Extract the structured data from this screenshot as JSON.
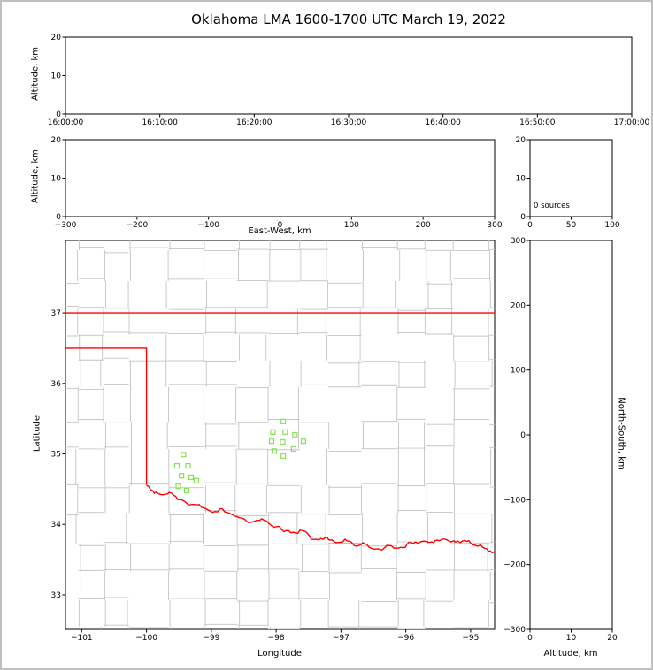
{
  "title": "Oklahoma LMA 1600-1700 UTC March 19, 2022",
  "colors": {
    "state_boundary": "#ff0000",
    "county_lines": "#c4c4c4",
    "station_marker": "#85e254",
    "axis": "#000000",
    "figure_border": "#c0c0c0"
  },
  "chart_data": [
    {
      "id": "time_height_panel",
      "type": "scatter",
      "xlabel": "",
      "ylabel": "Altitude, km",
      "xticks": [
        "16:00:00",
        "16:10:00",
        "16:20:00",
        "16:30:00",
        "16:40:00",
        "16:50:00",
        "17:00:00"
      ],
      "xtick_type": "categorical",
      "yticks": [
        0,
        10,
        20
      ],
      "ylim": [
        0,
        20
      ],
      "points": []
    },
    {
      "id": "ew_height_panel",
      "type": "scatter",
      "xlabel": "East-West, km",
      "ylabel": "Altitude, km",
      "xticks": [
        -300,
        -200,
        -100,
        0,
        100,
        200,
        300
      ],
      "xlim": [
        -300,
        300
      ],
      "yticks": [
        0,
        10,
        20
      ],
      "ylim": [
        0,
        20
      ],
      "points": []
    },
    {
      "id": "source_histogram_panel",
      "type": "line",
      "annotation": "0 sources",
      "xticks": [
        0,
        50,
        100
      ],
      "xlim": [
        0,
        100
      ],
      "yticks": [
        0,
        10,
        20
      ],
      "ylim": [
        0,
        20
      ],
      "points": []
    },
    {
      "id": "plan_view_map",
      "type": "scatter",
      "xlabel": "Longitude",
      "ylabel": "Latitude",
      "xticks": [
        -101,
        -100,
        -99,
        -98,
        -97,
        -96,
        -95
      ],
      "xlim": [
        -101.25,
        -94.63
      ],
      "yticks": [
        33,
        34,
        35,
        36,
        37
      ],
      "ylim": [
        32.51,
        38.03
      ],
      "county_grid": {
        "seed": 7,
        "lon_start": -101.05,
        "lat_start": 32.55,
        "lon_step_min": 0.38,
        "lon_step_var": 0.24,
        "lat_step_min": 0.34,
        "lat_step_var": 0.18,
        "skip_prob": 0.15,
        "offset": 0.08
      },
      "stations": [
        [
          -99.43,
          34.99
        ],
        [
          -99.53,
          34.83
        ],
        [
          -99.36,
          34.83
        ],
        [
          -99.46,
          34.69
        ],
        [
          -99.31,
          34.67
        ],
        [
          -99.51,
          34.54
        ],
        [
          -99.38,
          34.48
        ],
        [
          -99.23,
          34.62
        ],
        [
          -97.89,
          35.46
        ],
        [
          -98.05,
          35.31
        ],
        [
          -97.86,
          35.31
        ],
        [
          -97.71,
          35.27
        ],
        [
          -98.07,
          35.18
        ],
        [
          -97.9,
          35.17
        ],
        [
          -98.03,
          35.04
        ],
        [
          -97.89,
          34.97
        ],
        [
          -97.73,
          35.07
        ],
        [
          -97.58,
          35.18
        ]
      ],
      "state_boundary": {
        "north": [
          [
            -101.25,
            37.0
          ],
          [
            -94.63,
            37.0
          ]
        ],
        "panhandle_border": [
          [
            -101.25,
            36.5
          ],
          [
            -100.0,
            36.5
          ],
          [
            -100.0,
            34.56
          ]
        ],
        "red_river": [
          [
            -100.0,
            34.55
          ],
          [
            -99.88,
            34.44
          ],
          [
            -99.75,
            34.42
          ],
          [
            -99.61,
            34.44
          ],
          [
            -99.47,
            34.35
          ],
          [
            -99.32,
            34.28
          ],
          [
            -99.15,
            34.24
          ],
          [
            -98.98,
            34.17
          ],
          [
            -98.83,
            34.22
          ],
          [
            -98.68,
            34.14
          ],
          [
            -98.53,
            34.09
          ],
          [
            -98.38,
            34.03
          ],
          [
            -98.22,
            34.08
          ],
          [
            -98.07,
            33.98
          ],
          [
            -97.92,
            33.93
          ],
          [
            -97.77,
            33.88
          ],
          [
            -97.63,
            33.92
          ],
          [
            -97.48,
            33.83
          ],
          [
            -97.35,
            33.78
          ],
          [
            -97.21,
            33.81
          ],
          [
            -97.07,
            33.74
          ],
          [
            -96.94,
            33.79
          ],
          [
            -96.8,
            33.7
          ],
          [
            -96.66,
            33.74
          ],
          [
            -96.53,
            33.66
          ],
          [
            -96.39,
            33.64
          ],
          [
            -96.25,
            33.7
          ],
          [
            -96.12,
            33.66
          ],
          [
            -95.98,
            33.72
          ],
          [
            -95.85,
            33.75
          ],
          [
            -95.71,
            33.76
          ],
          [
            -95.57,
            33.74
          ],
          [
            -95.44,
            33.79
          ],
          [
            -95.3,
            33.75
          ],
          [
            -95.16,
            33.74
          ],
          [
            -95.03,
            33.77
          ],
          [
            -94.89,
            33.69
          ],
          [
            -94.75,
            33.65
          ],
          [
            -94.63,
            33.61
          ]
        ]
      }
    },
    {
      "id": "ns_height_panel",
      "type": "scatter",
      "xlabel": "Altitude, km",
      "ylabel_right": "North-South, km",
      "xticks": [
        0,
        10,
        20
      ],
      "xlim": [
        0,
        20
      ],
      "yticks": [
        300,
        200,
        100,
        0,
        -100,
        -200,
        -300
      ],
      "ylim": [
        -300,
        300
      ],
      "points": []
    }
  ]
}
